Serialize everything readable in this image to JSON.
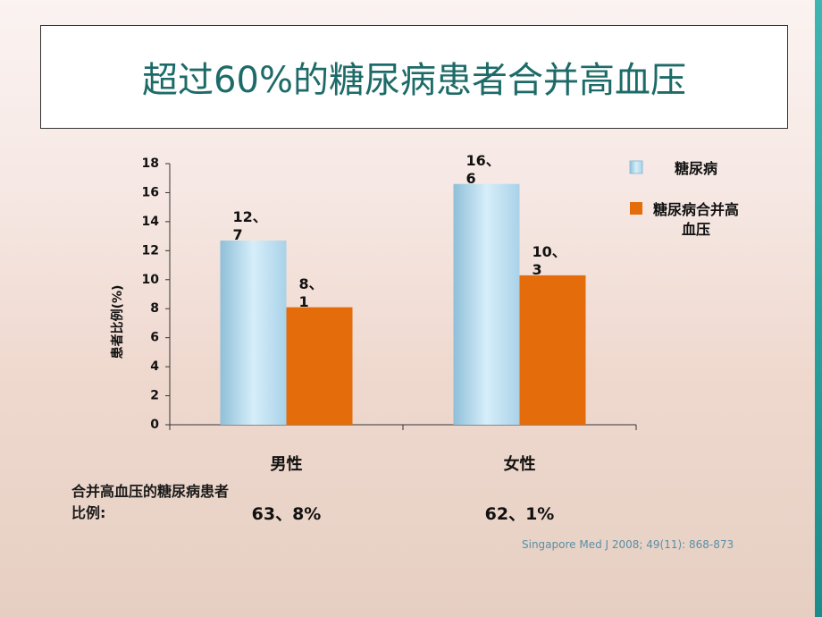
{
  "chart_data": {
    "type": "bar",
    "title": "超过60%的糖尿病患者合并高血压",
    "y_label": "患者比例(%)",
    "categories": [
      "男性",
      "女性"
    ],
    "series": [
      {
        "name": "糖尿病",
        "color": "#b9dcf0",
        "values": [
          12.7,
          16.6
        ],
        "value_labels": [
          "12、7",
          "16、6"
        ]
      },
      {
        "name": "糖尿病合并高血压",
        "color": "#e46c0a",
        "values": [
          8.1,
          10.3
        ],
        "value_labels": [
          "8、1",
          "10、3"
        ]
      }
    ],
    "ylim": [
      0,
      18
    ],
    "yticks": [
      0,
      2,
      4,
      6,
      8,
      10,
      12,
      14,
      16,
      18
    ],
    "grid": false,
    "combined": {
      "label": "合并高血压的糖尿病患者比例:",
      "values": [
        63.8,
        62.1
      ],
      "value_labels": [
        "63、8%",
        "62、1%"
      ]
    },
    "source": "Singapore Med J 2008; 49(11): 868-873"
  }
}
